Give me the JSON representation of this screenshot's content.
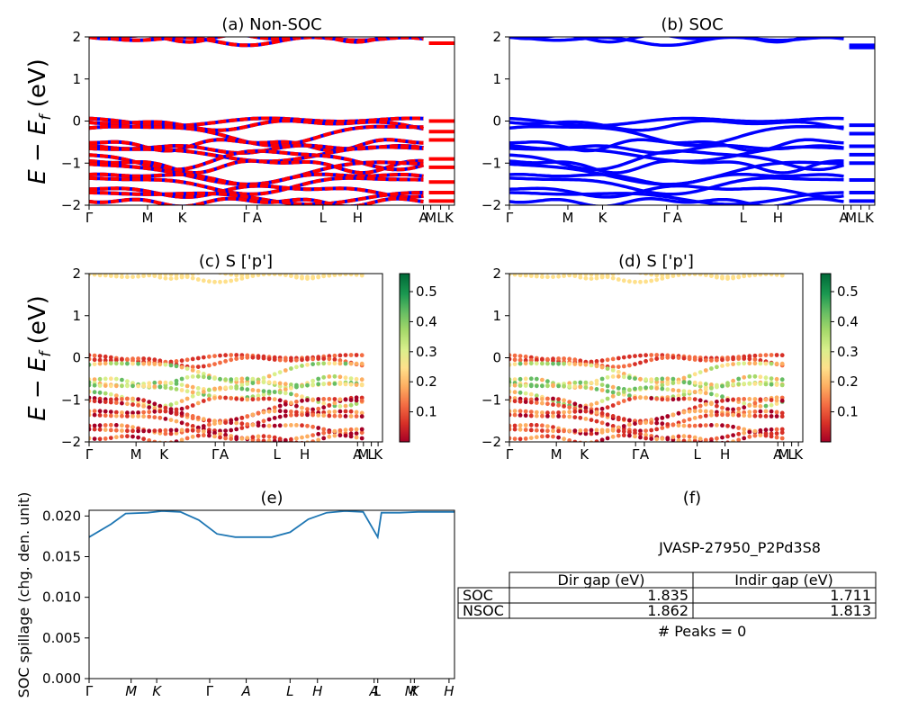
{
  "colors": {
    "nonsoc_a": "#ff0000",
    "nonsoc_b": "#0000ff",
    "soc": "#0000ff",
    "spillage": "#1f77b4",
    "colormap": [
      "#a50026",
      "#d73027",
      "#f46d43",
      "#fdae61",
      "#fee08b",
      "#d9ef8b",
      "#a6d96a",
      "#66bd63",
      "#1a9850",
      "#006837"
    ]
  },
  "chart_data": [
    {
      "id": "a",
      "type": "line",
      "title": "(a) Non-SOC",
      "ylabel": "E − E_f (eV)",
      "ylim": [
        -2,
        2
      ],
      "yticks": [
        "−2",
        "−1",
        "0",
        "1",
        "2"
      ],
      "xticks": [
        "Γ",
        "M",
        "K",
        "Γ",
        "A",
        "L",
        "H",
        "A",
        "M",
        "L",
        "K"
      ],
      "series_colors": [
        "red",
        "blue"
      ]
    },
    {
      "id": "b",
      "type": "line",
      "title": "(b) SOC",
      "ylim": [
        -2,
        2
      ],
      "yticks": [
        "−2",
        "−1",
        "0",
        "1",
        "2"
      ],
      "xticks": [
        "Γ",
        "M",
        "K",
        "Γ",
        "A",
        "L",
        "H",
        "A",
        "M",
        "L",
        "K"
      ]
    },
    {
      "id": "c",
      "type": "scatter",
      "title": "(c)  S ['p']",
      "ylabel": "E − E_f (eV)",
      "ylim": [
        -2,
        2
      ],
      "yticks": [
        "−2",
        "−1",
        "0",
        "1",
        "2"
      ],
      "xticks": [
        "Γ",
        "M",
        "K",
        "Γ",
        "A",
        "L",
        "H",
        "A",
        "M",
        "L",
        "K"
      ],
      "colorbar": {
        "range": [
          0.0,
          0.56
        ],
        "ticks": [
          "0.1",
          "0.2",
          "0.3",
          "0.4",
          "0.5"
        ]
      }
    },
    {
      "id": "d",
      "type": "scatter",
      "title": "(d) S ['p']",
      "ylim": [
        -2,
        2
      ],
      "yticks": [
        "−2",
        "−1",
        "0",
        "1",
        "2"
      ],
      "xticks": [
        "Γ",
        "M",
        "K",
        "Γ",
        "A",
        "L",
        "H",
        "A",
        "M",
        "L",
        "K"
      ],
      "colorbar": {
        "range": [
          0.0,
          0.56
        ],
        "ticks": [
          "0.1",
          "0.2",
          "0.3",
          "0.4",
          "0.5"
        ]
      }
    },
    {
      "id": "e",
      "type": "line",
      "title": "(e)",
      "ylabel": "SOC spillage (chg. den. unit)",
      "ylim": [
        0,
        0.0207
      ],
      "yticks": [
        "0.000",
        "0.005",
        "0.010",
        "0.015",
        "0.020"
      ],
      "xticks": [
        "Γ",
        "M",
        "K",
        "Γ",
        "A",
        "L",
        "H",
        "A",
        "L",
        "M",
        "K",
        "H"
      ],
      "x": [
        0,
        0.06,
        0.1,
        0.16,
        0.2,
        0.25,
        0.3,
        0.35,
        0.4,
        0.45,
        0.5,
        0.55,
        0.6,
        0.65,
        0.7,
        0.75,
        0.79,
        0.8,
        0.85,
        0.9,
        1.0
      ],
      "y": [
        0.0174,
        0.019,
        0.0203,
        0.0204,
        0.0206,
        0.0205,
        0.0195,
        0.0178,
        0.0174,
        0.0174,
        0.0174,
        0.018,
        0.0196,
        0.0204,
        0.0206,
        0.0205,
        0.0174,
        0.0204,
        0.0204,
        0.0205,
        0.0205
      ]
    }
  ],
  "table": {
    "title": "(f)",
    "material": "JVASP-27950_P2Pd3S8",
    "headers": [
      "Dir gap (eV)",
      "Indir gap (eV)"
    ],
    "rows": [
      {
        "label": "SOC",
        "dir": "1.835",
        "indir": "1.711"
      },
      {
        "label": "NSOC",
        "dir": "1.862",
        "indir": "1.813"
      }
    ],
    "peaks": "# Peaks = 0"
  }
}
